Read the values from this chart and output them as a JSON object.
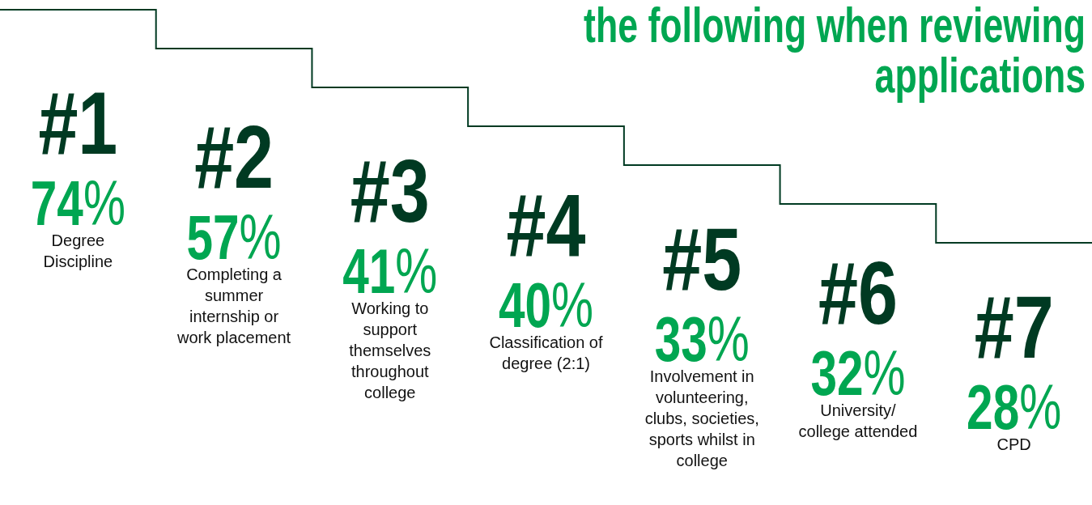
{
  "chart_data": {
    "type": "other",
    "title": "the following when reviewing applications",
    "categories": [
      "Degree Discipline",
      "Completing a summer internship or work placement",
      "Working to support themselves throughout college",
      "Classification of degree (2:1)",
      "Involvement in volunteering, clubs, societies, sports whilst in college",
      "University/ college attended",
      "CPD"
    ],
    "values": [
      74,
      57,
      41,
      40,
      33,
      32,
      28
    ],
    "value_labels": [
      "74%",
      "57%",
      "41%",
      "40%",
      "33%",
      "32%",
      "28%"
    ],
    "annotations": [
      "#1",
      "#2",
      "#3",
      "#4",
      "#5",
      "#6",
      "#7"
    ],
    "color": "#00a651"
  }
}
